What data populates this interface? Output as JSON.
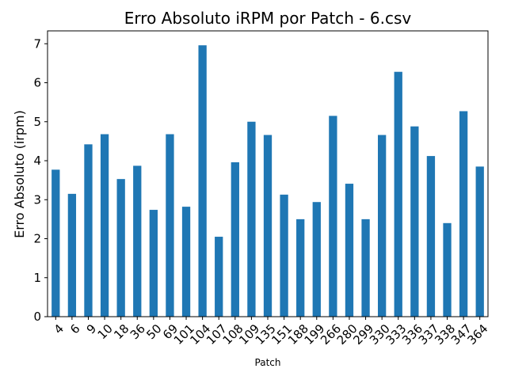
{
  "chart_data": {
    "type": "bar",
    "title": "Erro Absoluto iRPM por Patch - 6.csv",
    "xlabel": "Patch",
    "ylabel": "Erro Absoluto (irpm)",
    "categories": [
      "4",
      "6",
      "9",
      "10",
      "18",
      "36",
      "50",
      "69",
      "101",
      "104",
      "107",
      "108",
      "109",
      "135",
      "151",
      "188",
      "199",
      "266",
      "280",
      "299",
      "330",
      "333",
      "336",
      "337",
      "338",
      "347",
      "364"
    ],
    "values": [
      3.77,
      3.15,
      4.42,
      4.68,
      3.53,
      3.87,
      2.74,
      4.68,
      2.82,
      6.96,
      2.05,
      3.96,
      5.0,
      4.66,
      3.13,
      2.5,
      2.94,
      5.15,
      3.41,
      2.5,
      4.66,
      6.28,
      4.88,
      4.12,
      2.4,
      5.27,
      3.85
    ],
    "ylim": [
      0,
      7.33
    ],
    "yticks": [
      "0",
      "1",
      "2",
      "3",
      "4",
      "5",
      "6",
      "7"
    ],
    "bar_color": "#1f77b4",
    "grid": false,
    "legend": "none"
  }
}
